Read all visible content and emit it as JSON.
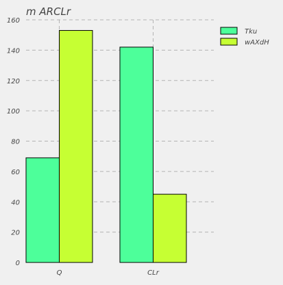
{
  "chart_data": {
    "type": "bar",
    "title": "m ARCLr",
    "xlabel": "",
    "ylabel": "",
    "categories": [
      "Q",
      "CLr"
    ],
    "ylim": [
      0,
      160
    ],
    "yticks": [
      0,
      20,
      40,
      60,
      80,
      100,
      120,
      140,
      160
    ],
    "grid": true,
    "legend_position": "top-right outside",
    "series": [
      {
        "name": "Tku",
        "values": [
          69,
          142
        ],
        "color": "#4dff9a"
      },
      {
        "name": "wAXdH",
        "values": [
          153,
          45
        ],
        "color": "#c6ff33"
      }
    ]
  },
  "colors": {
    "background": "#f0f0f0",
    "grid": "#b3b3b3",
    "bar_edge": "#000000"
  }
}
